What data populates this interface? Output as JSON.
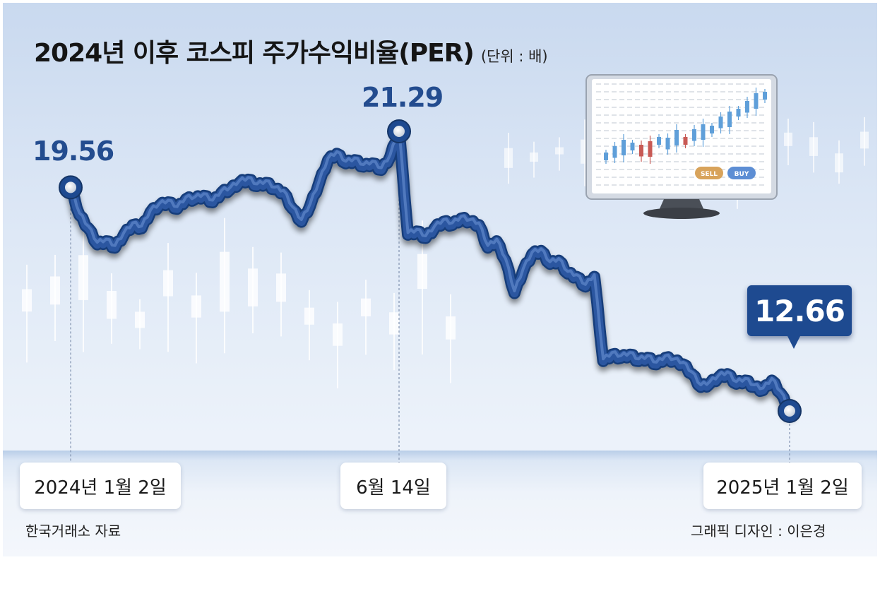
{
  "header": {
    "title": "2024년 이후 코스피 주가수익비율(PER)",
    "unit": "(단위 : 배)"
  },
  "labels": {
    "start_value": "19.56",
    "peak_value": "21.29",
    "end_value": "12.66",
    "start_date": "2024년 1월 2일",
    "peak_date": "6월 14일",
    "end_date": "2025년 1월 2일"
  },
  "footer": {
    "source": "한국거래소 자료",
    "credit": "그래픽 디자인 : 이은경"
  },
  "monitor": {
    "sell_label": "SELL",
    "buy_label": "BUY"
  },
  "colors": {
    "line": "#2b56a0",
    "accent": "#1e4a90",
    "value_text": "#234c8f"
  },
  "chart_data": {
    "type": "line",
    "title": "2024년 이후 코스피 주가수익비율(PER)",
    "unit": "배",
    "xlabel": "",
    "ylabel": "",
    "ylim": [
      11,
      23
    ],
    "grid": false,
    "x_labels": [
      "2024년 1월 2일",
      "6월 14일",
      "2025년 1월 2일"
    ],
    "series": [
      {
        "values": [
          19.56,
          18.7,
          18.3,
          17.8,
          17.9,
          17.7,
          18.1,
          18.4,
          18.3,
          18.8,
          19.0,
          19.1,
          18.9,
          19.2,
          19.2,
          19.3,
          19.1,
          19.4,
          19.5,
          19.7,
          19.8,
          19.6,
          19.7,
          19.5,
          19.4,
          18.9,
          18.5,
          19.0,
          19.7,
          20.4,
          20.6,
          20.3,
          20.4,
          20.2,
          20.3,
          20.1,
          20.5,
          21.29,
          18.1,
          18.2,
          18.0,
          18.3,
          18.5,
          18.4,
          18.6,
          18.5,
          18.4,
          17.7,
          17.9,
          17.3,
          16.3,
          17.0,
          17.5,
          17.6,
          17.2,
          17.3,
          16.9,
          16.8,
          16.5,
          16.8,
          14.2,
          14.4,
          14.3,
          14.4,
          14.2,
          14.3,
          14.1,
          14.3,
          14.2,
          14.1,
          13.8,
          13.4,
          13.5,
          13.7,
          13.8,
          13.5,
          13.6,
          13.4,
          13.3,
          13.6,
          13.2,
          12.66
        ]
      }
    ],
    "highlights": [
      {
        "index": 0,
        "value": 19.56,
        "date": "2024년 1월 2일"
      },
      {
        "index": 37,
        "value": 21.29,
        "date": "6월 14일"
      },
      {
        "index": 81,
        "value": 12.66,
        "date": "2025년 1월 2일"
      }
    ]
  }
}
